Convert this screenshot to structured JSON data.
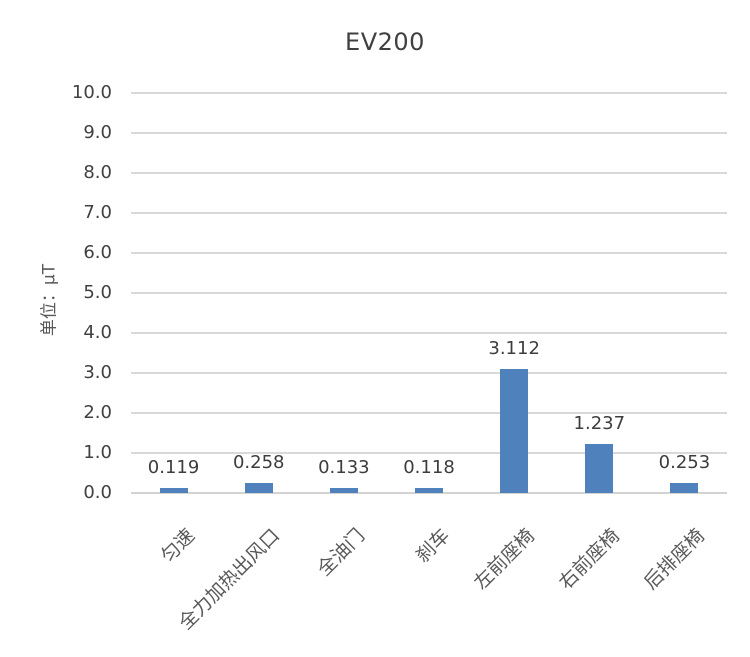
{
  "chart_data": {
    "type": "bar",
    "title": "EV200",
    "ylabel": "单位：μT",
    "categories": [
      "匀速",
      "全力加热出风口",
      "全油门",
      "刹车",
      "左前座椅",
      "右前座椅",
      "后排座椅"
    ],
    "values": [
      0.119,
      0.258,
      0.133,
      0.118,
      3.112,
      1.237,
      0.253
    ],
    "data_labels": [
      "0.119",
      "0.258",
      "0.133",
      "0.118",
      "3.112",
      "1.237",
      "0.253"
    ],
    "ylim": [
      0,
      10
    ],
    "ytick_labels": [
      "0.0",
      "1.0",
      "2.0",
      "3.0",
      "4.0",
      "5.0",
      "6.0",
      "7.0",
      "8.0",
      "9.0",
      "10.0"
    ],
    "grid": true,
    "legend": "none",
    "colors": {
      "bar": "#4F81BD",
      "gridline": "#D9D9D9",
      "axis_line": "#D3D3D3",
      "title_text": "#404040",
      "tick_text": "#404040",
      "category_text": "#595959",
      "data_label_text": "#3D3D3D"
    }
  }
}
